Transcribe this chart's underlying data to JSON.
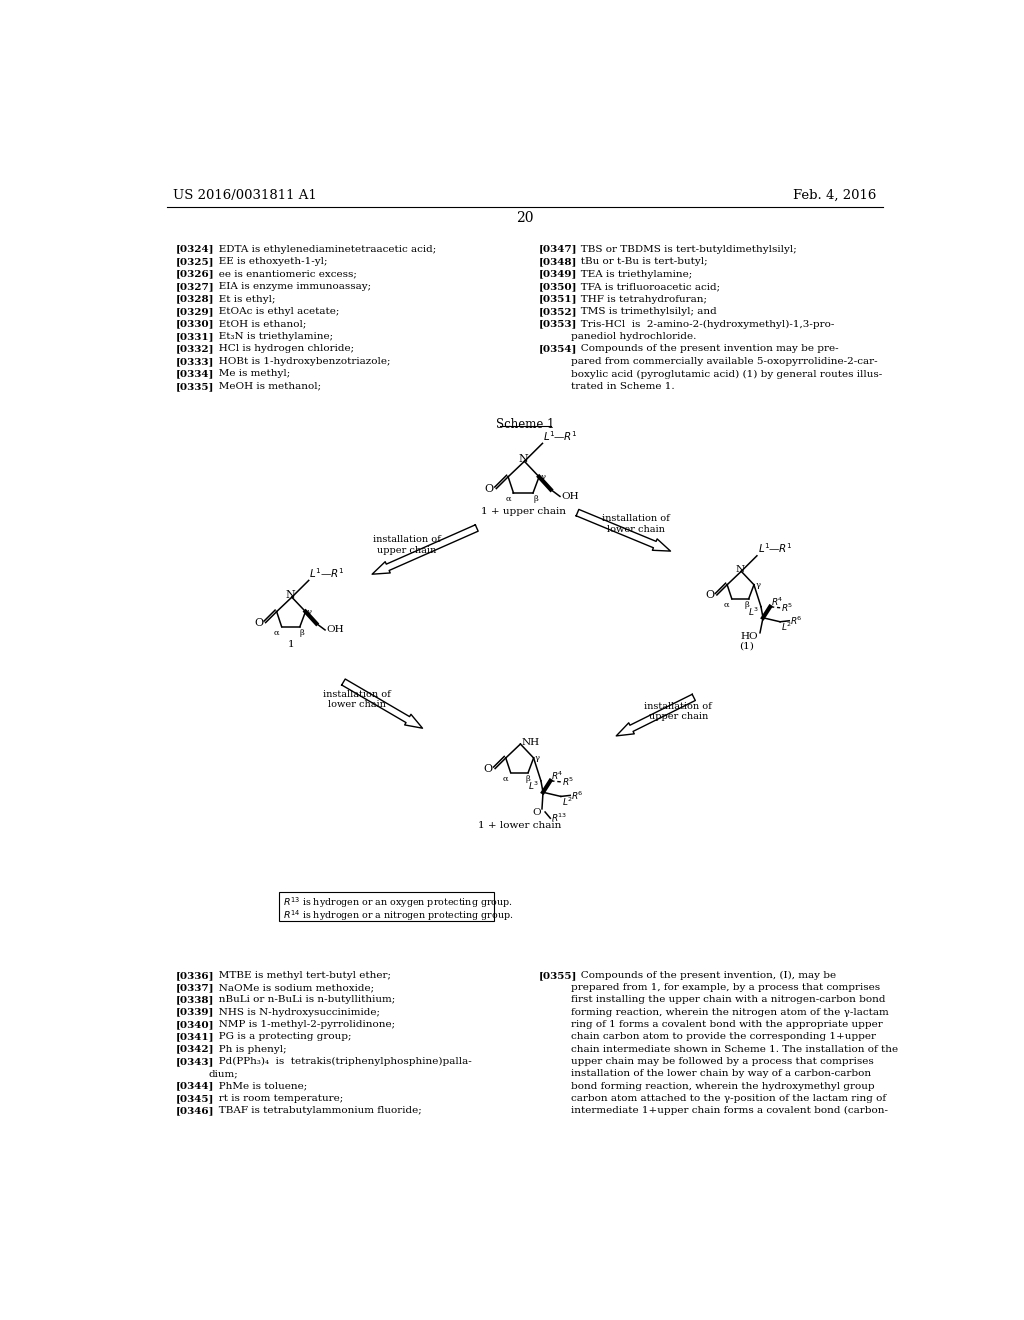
{
  "page_header_left": "US 2016/0031811 A1",
  "page_header_right": "Feb. 4, 2016",
  "page_number": "20",
  "background_color": "#ffffff",
  "left_column": [
    "[0324]   EDTA is ethylenediaminetetraacetic acid;",
    "[0325]   EE is ethoxyeth-1-yl;",
    "[0326]   ee is enantiomeric excess;",
    "[0327]   EIA is enzyme immunoassay;",
    "[0328]   Et is ethyl;",
    "[0329]   EtOAc is ethyl acetate;",
    "[0330]   EtOH is ethanol;",
    "[0331]   Et₃N is triethylamine;",
    "[0332]   HCl is hydrogen chloride;",
    "[0333]   HOBt is 1-hydroxybenzotriazole;",
    "[0334]   Me is methyl;",
    "[0335]   MeOH is methanol;"
  ],
  "right_column_top": [
    "[0347]   TBS or TBDMS is tert-butyldimethylsilyl;",
    "[0348]   tBu or t-Bu is tert-butyl;",
    "[0349]   TEA is triethylamine;",
    "[0350]   TFA is trifluoroacetic acid;",
    "[0351]   THF is tetrahydrofuran;",
    "[0352]   TMS is trimethylsilyl; and",
    "[0353]   Tris-HCl  is  2-amino-2-(hydroxymethyl)-1,3-pro-",
    "panediol hydrochloride.",
    "[0354]   Compounds of the present invention may be pre-",
    "pared from commercially available 5-oxopyrrolidine-2-car-",
    "boxylic acid (pyroglutamic acid) (1) by general routes illus-",
    "trated in Scheme 1."
  ],
  "left_column_bottom": [
    "[0336]   MTBE is methyl tert-butyl ether;",
    "[0337]   NaOMe is sodium methoxide;",
    "[0338]   nBuLi or n-BuLi is n-butyllithium;",
    "[0339]   NHS is N-hydroxysuccinimide;",
    "[0340]   NMP is 1-methyl-2-pyrrolidinone;",
    "[0341]   PG is a protecting group;",
    "[0342]   Ph is phenyl;",
    "[0343]   Pd(PPh₃)₄  is  tetrakis(triphenylphosphine)palla-",
    "dium;",
    "[0344]   PhMe is toluene;",
    "[0345]   rt is room temperature;",
    "[0346]   TBAF is tetrabutylammonium fluoride;"
  ],
  "right_column_bottom": [
    "[0355]   Compounds of the present invention, (I), may be",
    "prepared from 1, for example, by a process that comprises",
    "first installing the upper chain with a nitrogen-carbon bond",
    "forming reaction, wherein the nitrogen atom of the γ-lactam",
    "ring of 1 forms a covalent bond with the appropriate upper",
    "chain carbon atom to provide the corresponding 1+upper",
    "chain intermediate shown in Scheme 1. The installation of the",
    "upper chain may be followed by a process that comprises",
    "installation of the lower chain by way of a carbon-carbon",
    "bond forming reaction, wherein the hydroxymethyl group",
    "carbon atom attached to the γ-position of the lactam ring of",
    "intermediate 1+upper chain forms a covalent bond (carbon-"
  ]
}
